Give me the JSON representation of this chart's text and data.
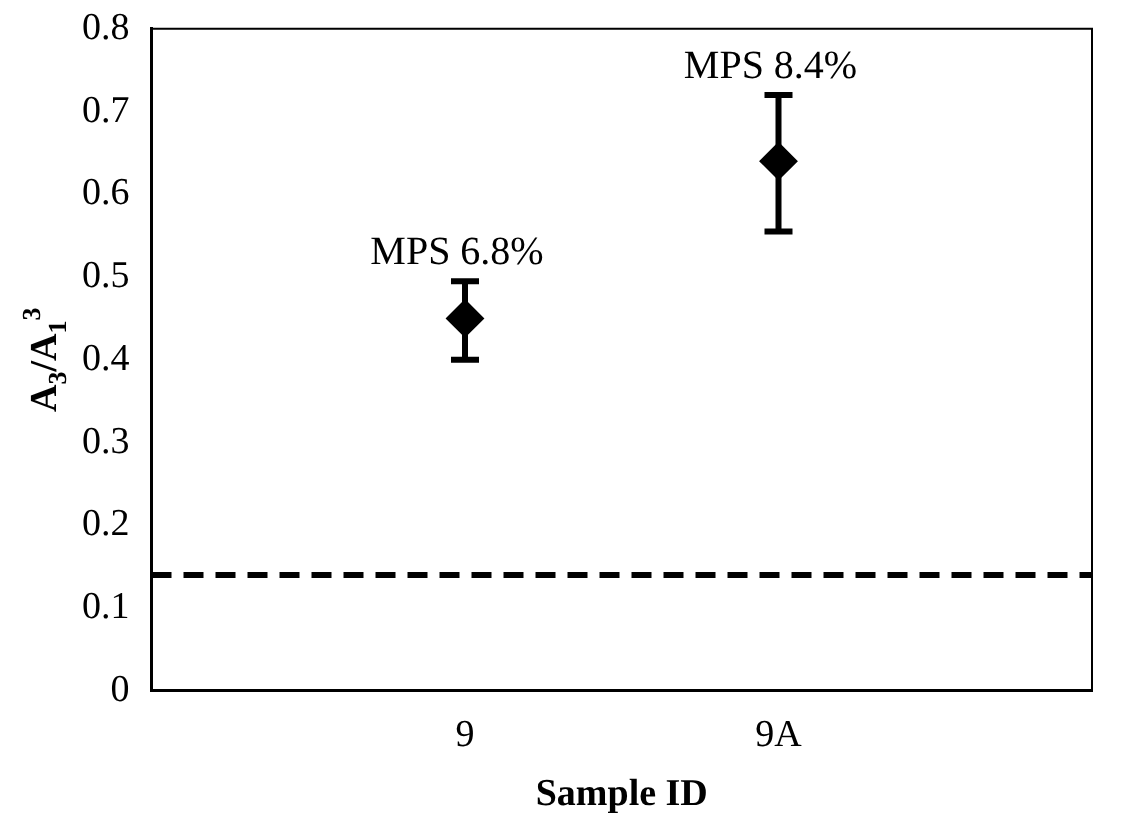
{
  "chart_data": {
    "type": "scatter",
    "xlabel": "Sample ID",
    "ylabel": "A$_{3}$/A$_{1}$$^{3}$",
    "categories": [
      null,
      "9",
      "9A",
      null
    ],
    "values": [
      null,
      0.45,
      0.64,
      null
    ],
    "errors": [
      null,
      [
        0.4,
        0.495
      ],
      [
        0.555,
        0.72
      ],
      null
    ],
    "color": "#000000",
    "marker": "diamond",
    "ylim": [
      0,
      0.8
    ],
    "yticks": [
      0,
      0.1,
      0.2,
      0.3,
      0.4,
      0.5,
      0.6,
      0.7,
      0.8
    ],
    "grid": false,
    "legend": false,
    "ref_lines": [
      {
        "axis": "y",
        "value": 0.14,
        "line_style": "dashed",
        "color": "#000000"
      }
    ],
    "annotations": [
      "MPS 6.8%",
      "MPS 8.4%"
    ]
  }
}
